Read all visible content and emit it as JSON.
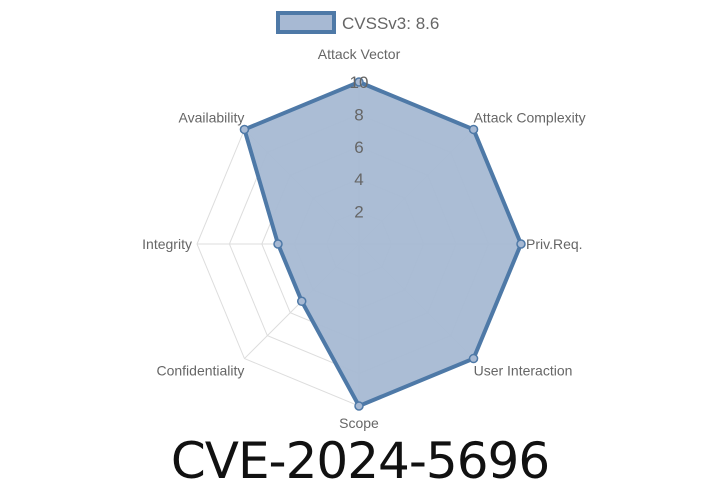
{
  "chart_data": {
    "type": "radar",
    "axes": [
      "Attack Vector",
      "Attack Complexity",
      "Priv.Req.",
      "User Interaction",
      "Scope",
      "Confidentiality",
      "Integrity",
      "Availability"
    ],
    "series": [
      {
        "name": "CVSSv3: 8.6",
        "values": [
          10,
          10,
          10,
          10,
          10,
          5,
          5,
          10
        ]
      }
    ],
    "rlim": [
      0,
      10
    ],
    "ticks": [
      "2",
      "4",
      "6",
      "8",
      "10"
    ],
    "legend": "top",
    "grid": true,
    "colors": {
      "fill": "#a7b9d3",
      "stroke": "#4e79a7"
    }
  },
  "title": "CVE-2024-5696"
}
